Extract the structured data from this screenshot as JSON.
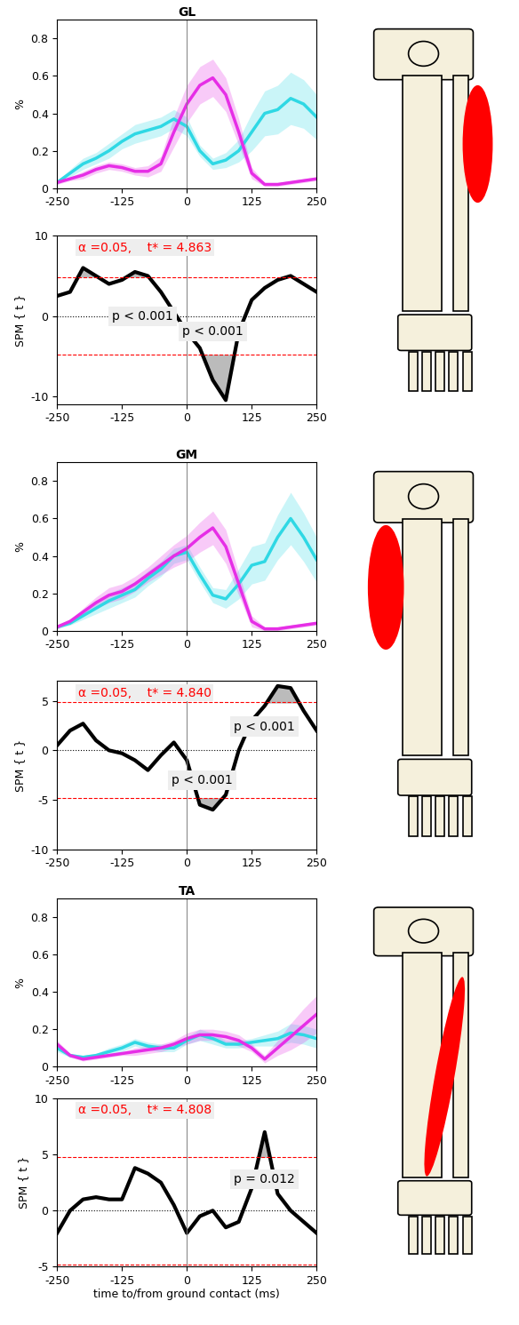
{
  "chart_data": [
    {
      "type": "line",
      "title": "GL",
      "ylabel": "%",
      "x": [
        -250,
        -225,
        -200,
        -175,
        -150,
        -125,
        -100,
        -75,
        -50,
        -25,
        0,
        25,
        50,
        75,
        100,
        125,
        150,
        175,
        200,
        225,
        250
      ],
      "xlim": [
        -250,
        250
      ],
      "xticks": [
        -250,
        -125,
        0,
        125,
        250
      ],
      "ylim": [
        0,
        0.9
      ],
      "yticks": [
        0,
        0.2,
        0.4,
        0.6,
        0.8
      ],
      "vline": 0,
      "series": [
        {
          "color": "#2fd8e4",
          "values": [
            0.03,
            0.08,
            0.13,
            0.16,
            0.2,
            0.25,
            0.29,
            0.31,
            0.33,
            0.37,
            0.33,
            0.2,
            0.13,
            0.15,
            0.2,
            0.3,
            0.4,
            0.42,
            0.48,
            0.45,
            0.38
          ],
          "spread": [
            0.01,
            0.02,
            0.03,
            0.03,
            0.04,
            0.04,
            0.05,
            0.05,
            0.05,
            0.05,
            0.05,
            0.03,
            0.03,
            0.04,
            0.06,
            0.1,
            0.12,
            0.13,
            0.14,
            0.13,
            0.12
          ]
        },
        {
          "color": "#e62ee6",
          "values": [
            0.03,
            0.05,
            0.07,
            0.1,
            0.12,
            0.11,
            0.09,
            0.09,
            0.13,
            0.3,
            0.45,
            0.55,
            0.59,
            0.5,
            0.3,
            0.08,
            0.02,
            0.02,
            0.03,
            0.04,
            0.05
          ],
          "spread": [
            0.01,
            0.01,
            0.02,
            0.02,
            0.02,
            0.02,
            0.02,
            0.03,
            0.04,
            0.08,
            0.1,
            0.1,
            0.1,
            0.09,
            0.07,
            0.03,
            0.01,
            0.01,
            0.01,
            0.01,
            0.01
          ]
        }
      ]
    },
    {
      "type": "spm",
      "ylabel": "SPM { t }",
      "x": [
        -250,
        -225,
        -200,
        -175,
        -150,
        -125,
        -100,
        -75,
        -50,
        -25,
        0,
        25,
        50,
        75,
        100,
        125,
        150,
        175,
        200,
        225,
        250
      ],
      "values": [
        2.5,
        3,
        6,
        5,
        4,
        4.5,
        5.5,
        5,
        3,
        0.5,
        -2,
        -4,
        -8,
        -10.5,
        -2,
        2,
        3.5,
        4.5,
        5,
        4,
        3
      ],
      "xlim": [
        -250,
        250
      ],
      "xticks": [
        -250,
        -125,
        0,
        125,
        250
      ],
      "ylim": [
        -11,
        10
      ],
      "yticks": [
        -10,
        0,
        10
      ],
      "vline": 0,
      "threshold": 4.863,
      "alpha_text": "α =0.05,    t* = 4.863",
      "annotations": [
        "p < 0.001",
        "p < 0.001"
      ]
    },
    {
      "type": "line",
      "title": "GM",
      "ylabel": "%",
      "x": [
        -250,
        -225,
        -200,
        -175,
        -150,
        -125,
        -100,
        -75,
        -50,
        -25,
        0,
        25,
        50,
        75,
        100,
        125,
        150,
        175,
        200,
        225,
        250
      ],
      "xlim": [
        -250,
        250
      ],
      "xticks": [
        -250,
        -125,
        0,
        125,
        250
      ],
      "ylim": [
        0,
        0.9
      ],
      "yticks": [
        0,
        0.2,
        0.4,
        0.6,
        0.8
      ],
      "vline": 0,
      "series": [
        {
          "color": "#2fd8e4",
          "values": [
            0.02,
            0.04,
            0.08,
            0.12,
            0.16,
            0.19,
            0.22,
            0.28,
            0.33,
            0.4,
            0.42,
            0.3,
            0.19,
            0.17,
            0.25,
            0.35,
            0.37,
            0.5,
            0.6,
            0.5,
            0.38
          ],
          "spread": [
            0.01,
            0.01,
            0.02,
            0.03,
            0.04,
            0.04,
            0.04,
            0.04,
            0.04,
            0.04,
            0.04,
            0.04,
            0.04,
            0.05,
            0.08,
            0.1,
            0.1,
            0.12,
            0.14,
            0.13,
            0.12
          ]
        },
        {
          "color": "#e62ee6",
          "values": [
            0.02,
            0.05,
            0.1,
            0.15,
            0.19,
            0.21,
            0.25,
            0.3,
            0.35,
            0.4,
            0.44,
            0.5,
            0.55,
            0.45,
            0.25,
            0.05,
            0.01,
            0.01,
            0.02,
            0.03,
            0.04
          ],
          "spread": [
            0.01,
            0.01,
            0.02,
            0.03,
            0.04,
            0.04,
            0.04,
            0.04,
            0.05,
            0.06,
            0.07,
            0.08,
            0.09,
            0.09,
            0.06,
            0.03,
            0.01,
            0.01,
            0.01,
            0.01,
            0.01
          ]
        }
      ]
    },
    {
      "type": "spm",
      "ylabel": "SPM { t }",
      "x": [
        -250,
        -225,
        -200,
        -175,
        -150,
        -125,
        -100,
        -75,
        -50,
        -25,
        0,
        25,
        50,
        75,
        100,
        125,
        150,
        175,
        200,
        225,
        250
      ],
      "values": [
        0.5,
        2,
        2.7,
        1,
        0,
        -0.3,
        -1,
        -2,
        -0.5,
        0.8,
        -1,
        -5.5,
        -6,
        -4.5,
        0,
        3,
        4.5,
        6.5,
        6.3,
        4,
        2
      ],
      "xlim": [
        -250,
        250
      ],
      "xticks": [
        -250,
        -125,
        0,
        125,
        250
      ],
      "ylim": [
        -10,
        7
      ],
      "yticks": [
        -10,
        -5,
        0,
        5
      ],
      "vline": 0,
      "threshold": 4.84,
      "alpha_text": "α =0.05,    t* = 4.840",
      "annotations": [
        "p < 0.001",
        "p < 0.001"
      ]
    },
    {
      "type": "line",
      "title": "TA",
      "ylabel": "%",
      "x": [
        -250,
        -225,
        -200,
        -175,
        -150,
        -125,
        -100,
        -75,
        -50,
        -25,
        0,
        25,
        50,
        75,
        100,
        125,
        150,
        175,
        200,
        225,
        250
      ],
      "xlim": [
        -250,
        250
      ],
      "xticks": [
        -250,
        -125,
        0,
        125,
        250
      ],
      "ylim": [
        0,
        0.9
      ],
      "yticks": [
        0,
        0.2,
        0.4,
        0.6,
        0.8
      ],
      "vline": 0,
      "series": [
        {
          "color": "#2fd8e4",
          "values": [
            0.1,
            0.06,
            0.05,
            0.06,
            0.08,
            0.1,
            0.13,
            0.11,
            0.1,
            0.1,
            0.14,
            0.17,
            0.15,
            0.12,
            0.12,
            0.13,
            0.14,
            0.15,
            0.18,
            0.17,
            0.15
          ],
          "spread": [
            0.02,
            0.01,
            0.01,
            0.01,
            0.02,
            0.02,
            0.02,
            0.02,
            0.02,
            0.02,
            0.02,
            0.03,
            0.03,
            0.02,
            0.02,
            0.02,
            0.03,
            0.04,
            0.05,
            0.05,
            0.05
          ]
        },
        {
          "color": "#e62ee6",
          "values": [
            0.12,
            0.06,
            0.04,
            0.05,
            0.06,
            0.07,
            0.08,
            0.09,
            0.1,
            0.12,
            0.15,
            0.17,
            0.17,
            0.16,
            0.14,
            0.1,
            0.04,
            0.1,
            0.16,
            0.22,
            0.28
          ],
          "spread": [
            0.02,
            0.01,
            0.01,
            0.01,
            0.01,
            0.01,
            0.02,
            0.02,
            0.02,
            0.02,
            0.03,
            0.03,
            0.03,
            0.03,
            0.03,
            0.02,
            0.02,
            0.04,
            0.07,
            0.09,
            0.1
          ]
        }
      ]
    },
    {
      "type": "spm",
      "ylabel": "SPM { t }",
      "xlabel": "time to/from ground contact (ms)",
      "x": [
        -250,
        -225,
        -200,
        -175,
        -150,
        -125,
        -100,
        -75,
        -50,
        -25,
        0,
        25,
        50,
        75,
        100,
        125,
        150,
        175,
        200,
        225,
        250
      ],
      "values": [
        -2,
        0,
        1,
        1.2,
        1,
        1,
        3.8,
        3.3,
        2.5,
        0.5,
        -2,
        -0.5,
        0,
        -1.5,
        -1,
        2,
        7,
        1.5,
        0,
        -1,
        -2
      ],
      "xlim": [
        -250,
        250
      ],
      "xticks": [
        -250,
        -125,
        0,
        125,
        250
      ],
      "ylim": [
        -5,
        10
      ],
      "yticks": [
        -5,
        0,
        5,
        10
      ],
      "vline": 0,
      "threshold": 4.808,
      "alpha_text": "α =0.05,    t* = 4.808",
      "annotations": [
        "p = 0.012"
      ]
    }
  ]
}
